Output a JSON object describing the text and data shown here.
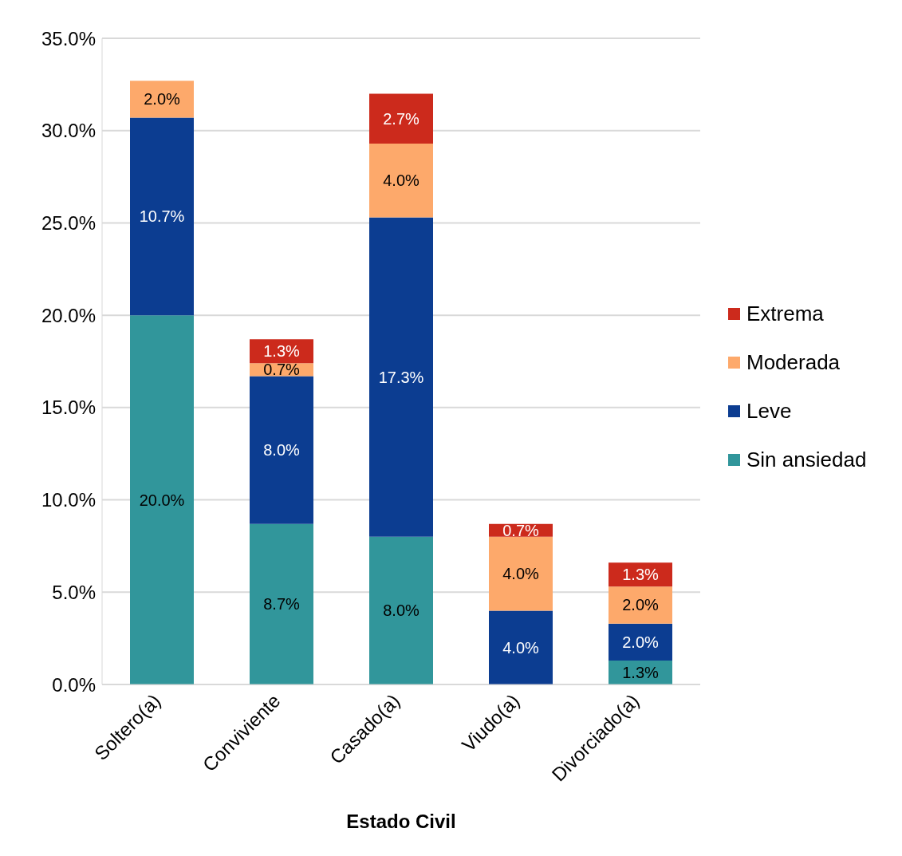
{
  "chart_data": {
    "type": "bar",
    "stacked": true,
    "xlabel": "Estado Civil",
    "categories": [
      "Soltero(a)",
      "Conviviente",
      "Casado(a)",
      "Viudo(a)",
      "Divorciado(a)"
    ],
    "series": [
      {
        "name": "Sin ansiedad",
        "color": "#31969b",
        "values": [
          20.0,
          8.7,
          8.0,
          0,
          1.3
        ],
        "value_labels": [
          "20.0%",
          "8.7%",
          "8.0%",
          null,
          "1.3%"
        ]
      },
      {
        "name": "Leve",
        "color": "#0c3d91",
        "values": [
          10.7,
          8.0,
          17.3,
          4.0,
          2.0
        ],
        "value_labels": [
          "10.7%",
          "8.0%",
          "17.3%",
          "4.0%",
          "2.0%"
        ]
      },
      {
        "name": "Moderada",
        "color": "#fda96b",
        "values": [
          2.0,
          0.7,
          4.0,
          4.0,
          2.0
        ],
        "value_labels": [
          "2.0%",
          "0.7%",
          "4.0%",
          "4.0%",
          "2.0%"
        ]
      },
      {
        "name": "Extrema",
        "color": "#cc2a1c",
        "values": [
          0,
          1.3,
          2.7,
          0.7,
          1.3
        ],
        "value_labels": [
          null,
          "1.3%",
          "2.7%",
          "0.7%",
          "1.3%"
        ]
      }
    ],
    "ylim": [
      0,
      35
    ],
    "yticks": [
      {
        "value": 0,
        "label": "0.0%"
      },
      {
        "value": 5,
        "label": "5.0%"
      },
      {
        "value": 10,
        "label": "10.0%"
      },
      {
        "value": 15,
        "label": "15.0%"
      },
      {
        "value": 20,
        "label": "20.0%"
      },
      {
        "value": 25,
        "label": "25.0%"
      },
      {
        "value": 30,
        "label": "30.0%"
      },
      {
        "value": 35,
        "label": "35.0%"
      }
    ],
    "grid": "y",
    "legend": "right"
  }
}
